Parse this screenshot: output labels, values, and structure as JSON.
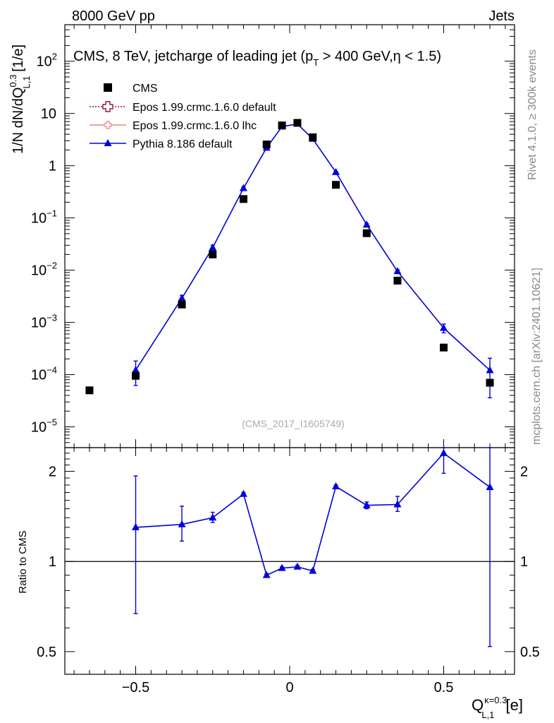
{
  "header": {
    "left": "8000 GeV pp",
    "right": "Jets"
  },
  "side_labels": {
    "rivet": "Rivet 4.1.0, ≥ 300k events",
    "mcplots": "mcplots.cern.ch [arXiv:2401.10621]"
  },
  "chart_data": {
    "type": "scatter",
    "title": "CMS, 8 TeV, jetcharge of leading jet (p",
    "title_sub": "T",
    "title_tail": " > 400 GeV,η < 1.5)",
    "watermark": "(CMS_2017_I1605749)",
    "ylabel_main": "1/N dN/dQ",
    "ylabel_sup": "0.3",
    "ylabel_sub": "L,1",
    "ylabel_unit": " [1/e]",
    "ylabel_ratio": "Ratio to CMS",
    "xlabel": "Q",
    "xlabel_sup": "κ=0.3",
    "xlabel_sub": "L,1",
    "xlabel_unit": " [e]",
    "xlim": [
      -0.73,
      0.73
    ],
    "ylim": [
      4e-06,
      500
    ],
    "ratio_ylim": [
      0.42,
      2.4
    ],
    "x_ticks": [
      {
        "value": -0.5,
        "label": "−0.5"
      },
      {
        "value": 0,
        "label": "0"
      },
      {
        "value": 0.5,
        "label": "0.5"
      }
    ],
    "y_ticks": [
      {
        "value": 1e-05,
        "base": "10",
        "exp": "−5"
      },
      {
        "value": 0.0001,
        "base": "10",
        "exp": "−4"
      },
      {
        "value": 0.001,
        "base": "10",
        "exp": "−3"
      },
      {
        "value": 0.01,
        "base": "10",
        "exp": "−2"
      },
      {
        "value": 0.1,
        "base": "10",
        "exp": "−1"
      },
      {
        "value": 1,
        "base": "1",
        "exp": ""
      },
      {
        "value": 10,
        "base": "10",
        "exp": ""
      },
      {
        "value": 100,
        "base": "10",
        "exp": "2"
      }
    ],
    "ratio_ticks": [
      {
        "value": 0.5,
        "label": "0.5"
      },
      {
        "value": 1,
        "label": "1"
      },
      {
        "value": 2,
        "label": "2"
      }
    ],
    "legend": [
      {
        "name": "CMS",
        "style": "square",
        "color": "#000000"
      },
      {
        "name": "Epos 1.99.crmc.1.6.0 default",
        "style": "open-cross-dotted",
        "color": "#8b1a3a"
      },
      {
        "name": "Epos 1.99.crmc.1.6.0 lhc",
        "style": "cross-line",
        "color": "#f08080"
      },
      {
        "name": "Pythia 8.186 default",
        "style": "triangle-line",
        "color": "#0000dd"
      }
    ],
    "series": [
      {
        "name": "CMS",
        "color": "#000000",
        "x": [
          -0.65,
          -0.5,
          -0.35,
          -0.25,
          -0.15,
          -0.075,
          -0.025,
          0.025,
          0.075,
          0.15,
          0.25,
          0.35,
          0.5,
          0.65
        ],
        "y": [
          5e-05,
          9.5e-05,
          0.0022,
          0.02,
          0.23,
          2.55,
          5.9,
          6.6,
          3.5,
          0.43,
          0.051,
          0.0063,
          0.00033,
          7e-05
        ]
      },
      {
        "name": "Pythia 8.186 default",
        "color": "#0000dd",
        "x": [
          -0.5,
          -0.35,
          -0.25,
          -0.15,
          -0.075,
          -0.025,
          0.025,
          0.075,
          0.15,
          0.25,
          0.35,
          0.5,
          0.65
        ],
        "y": [
          0.000122,
          0.0029,
          0.027,
          0.37,
          2.2,
          5.6,
          6.3,
          3.25,
          0.75,
          0.074,
          0.0095,
          0.00078,
          0.000121
        ],
        "y_err_low": [
          6e-05,
          0.0004,
          0.003,
          0.02,
          0.1,
          0.2,
          0.2,
          0.1,
          0.03,
          0.004,
          0.0007,
          0.00015,
          8.5e-05
        ],
        "y_err_high": [
          6e-05,
          0.0004,
          0.003,
          0.02,
          0.1,
          0.2,
          0.2,
          0.1,
          0.03,
          0.004,
          0.0007,
          0.00015,
          8.5e-05
        ],
        "ratio": [
          1.3,
          1.33,
          1.4,
          1.68,
          0.9,
          0.95,
          0.96,
          0.93,
          1.78,
          1.54,
          1.55,
          2.3,
          1.77
        ],
        "ratio_err_low": [
          0.63,
          0.16,
          0.05,
          0.02,
          0.01,
          0.01,
          0.01,
          0.01,
          0.02,
          0.04,
          0.08,
          0.33,
          1.25
        ],
        "ratio_err_high": [
          0.63,
          0.2,
          0.06,
          0.02,
          0.01,
          0.01,
          0.01,
          0.01,
          0.02,
          0.04,
          0.1,
          0.33,
          1.25
        ]
      }
    ]
  }
}
